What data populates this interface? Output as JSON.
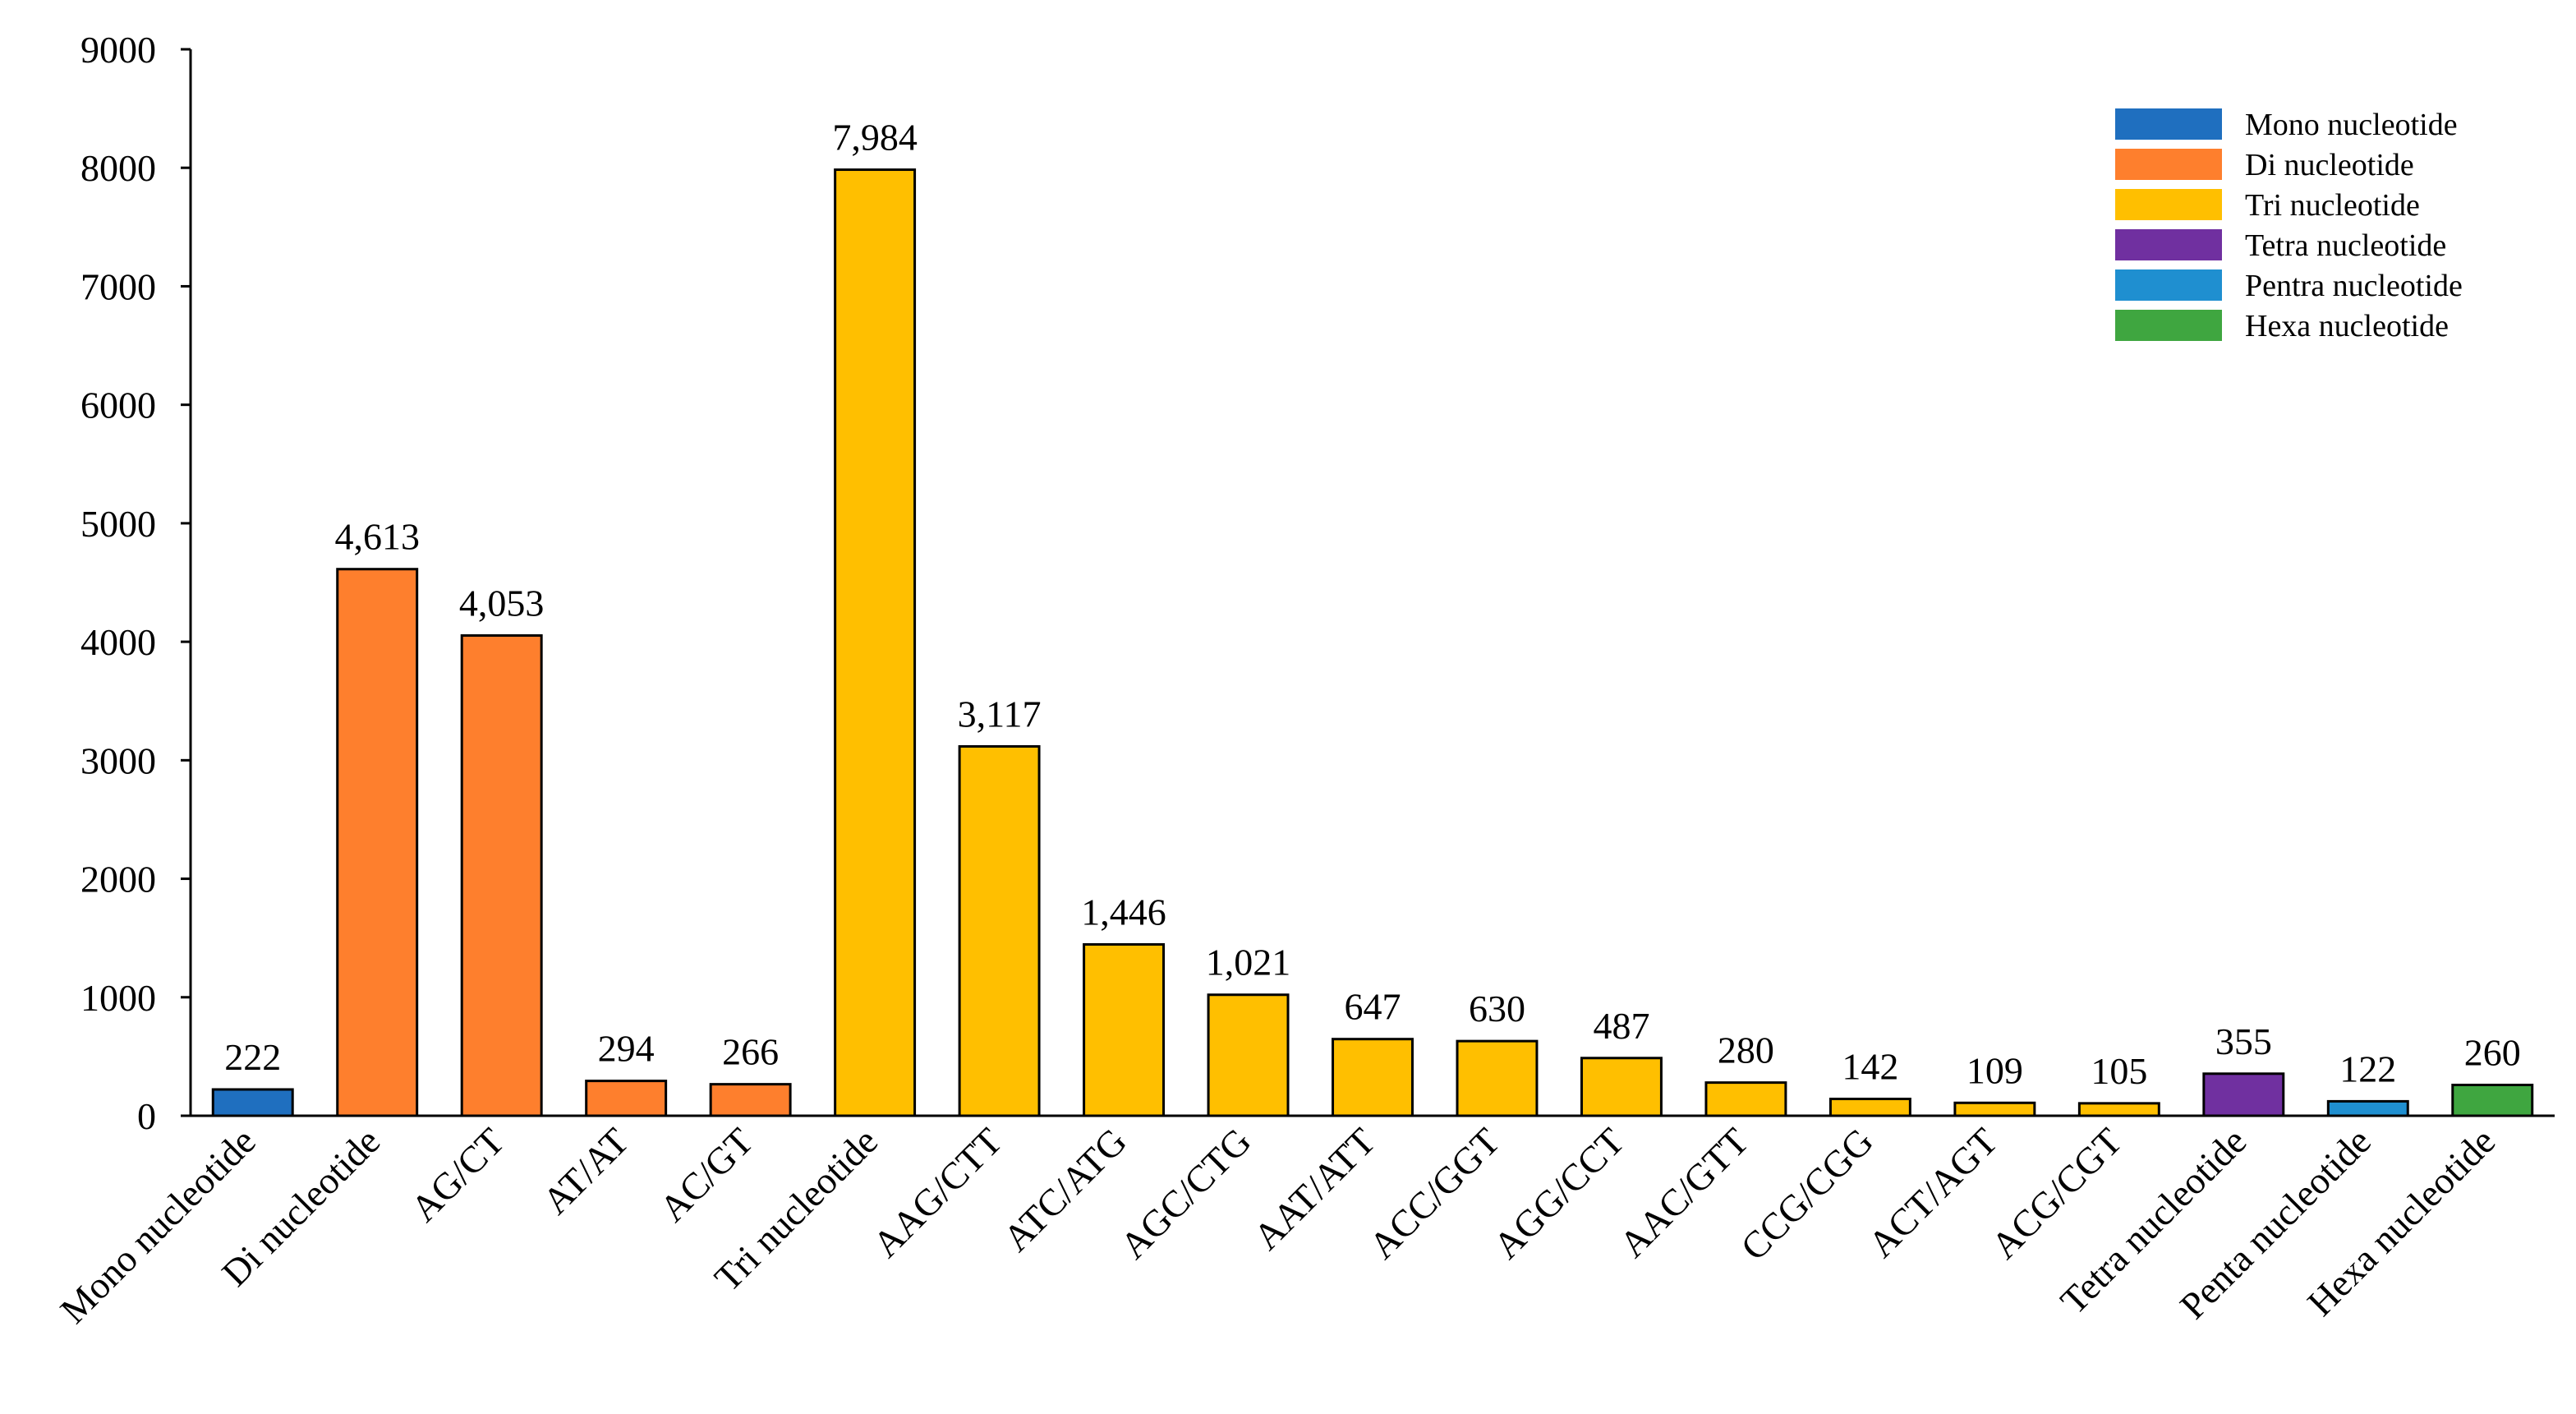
{
  "chart_data": {
    "type": "bar",
    "title": "",
    "xlabel": "",
    "ylabel": "",
    "ylim": [
      0,
      9000
    ],
    "yticks": [
      "0",
      "1000",
      "2000",
      "3000",
      "4000",
      "5000",
      "6000",
      "7000",
      "8000",
      "9000"
    ],
    "grid": false,
    "legend_position": "top-right",
    "categories": [
      "Mono nucleotide",
      "Di nucleotide",
      "AG/CT",
      "AT/AT",
      "AC/GT",
      "Tri nucleotide",
      "AAG/CTT",
      "ATC/ATG",
      "AGC/CTG",
      "AAT/ATT",
      "ACC/GGT",
      "AGG/CCT",
      "AAC/GTT",
      "CCG/CGG",
      "ACT/AGT",
      "ACG/CGT",
      "Tetra nucleotide",
      "Penta nucleotide",
      "Hexa nucleotide"
    ],
    "values": [
      222,
      4613,
      4053,
      294,
      266,
      7984,
      3117,
      1446,
      1021,
      647,
      630,
      487,
      280,
      142,
      109,
      105,
      355,
      122,
      260
    ],
    "value_labels": [
      "222",
      "4,613",
      "4,053",
      "294",
      "266",
      "7,984",
      "3,117",
      "1,446",
      "1,021",
      "647",
      "630",
      "487",
      "280",
      "142",
      "109",
      "105",
      "355",
      "122",
      "260"
    ],
    "bar_groups": [
      "mono",
      "di",
      "di",
      "di",
      "di",
      "tri",
      "tri",
      "tri",
      "tri",
      "tri",
      "tri",
      "tri",
      "tri",
      "tri",
      "tri",
      "tri",
      "tetra",
      "penta",
      "hexa"
    ],
    "legend": [
      {
        "key": "mono",
        "label": "Mono nucleotide",
        "color": "#1f6fbf"
      },
      {
        "key": "di",
        "label": "Di nucleotide",
        "color": "#fe7f2d"
      },
      {
        "key": "tri",
        "label": "Tri nucleotide",
        "color": "#ffbf00"
      },
      {
        "key": "tetra",
        "label": "Tetra nucleotide",
        "color": "#7030a0"
      },
      {
        "key": "penta",
        "label": "Pentra nucleotide",
        "color": "#1f8fd0"
      },
      {
        "key": "hexa",
        "label": "Hexa nucleotide",
        "color": "#3fa640"
      }
    ]
  }
}
